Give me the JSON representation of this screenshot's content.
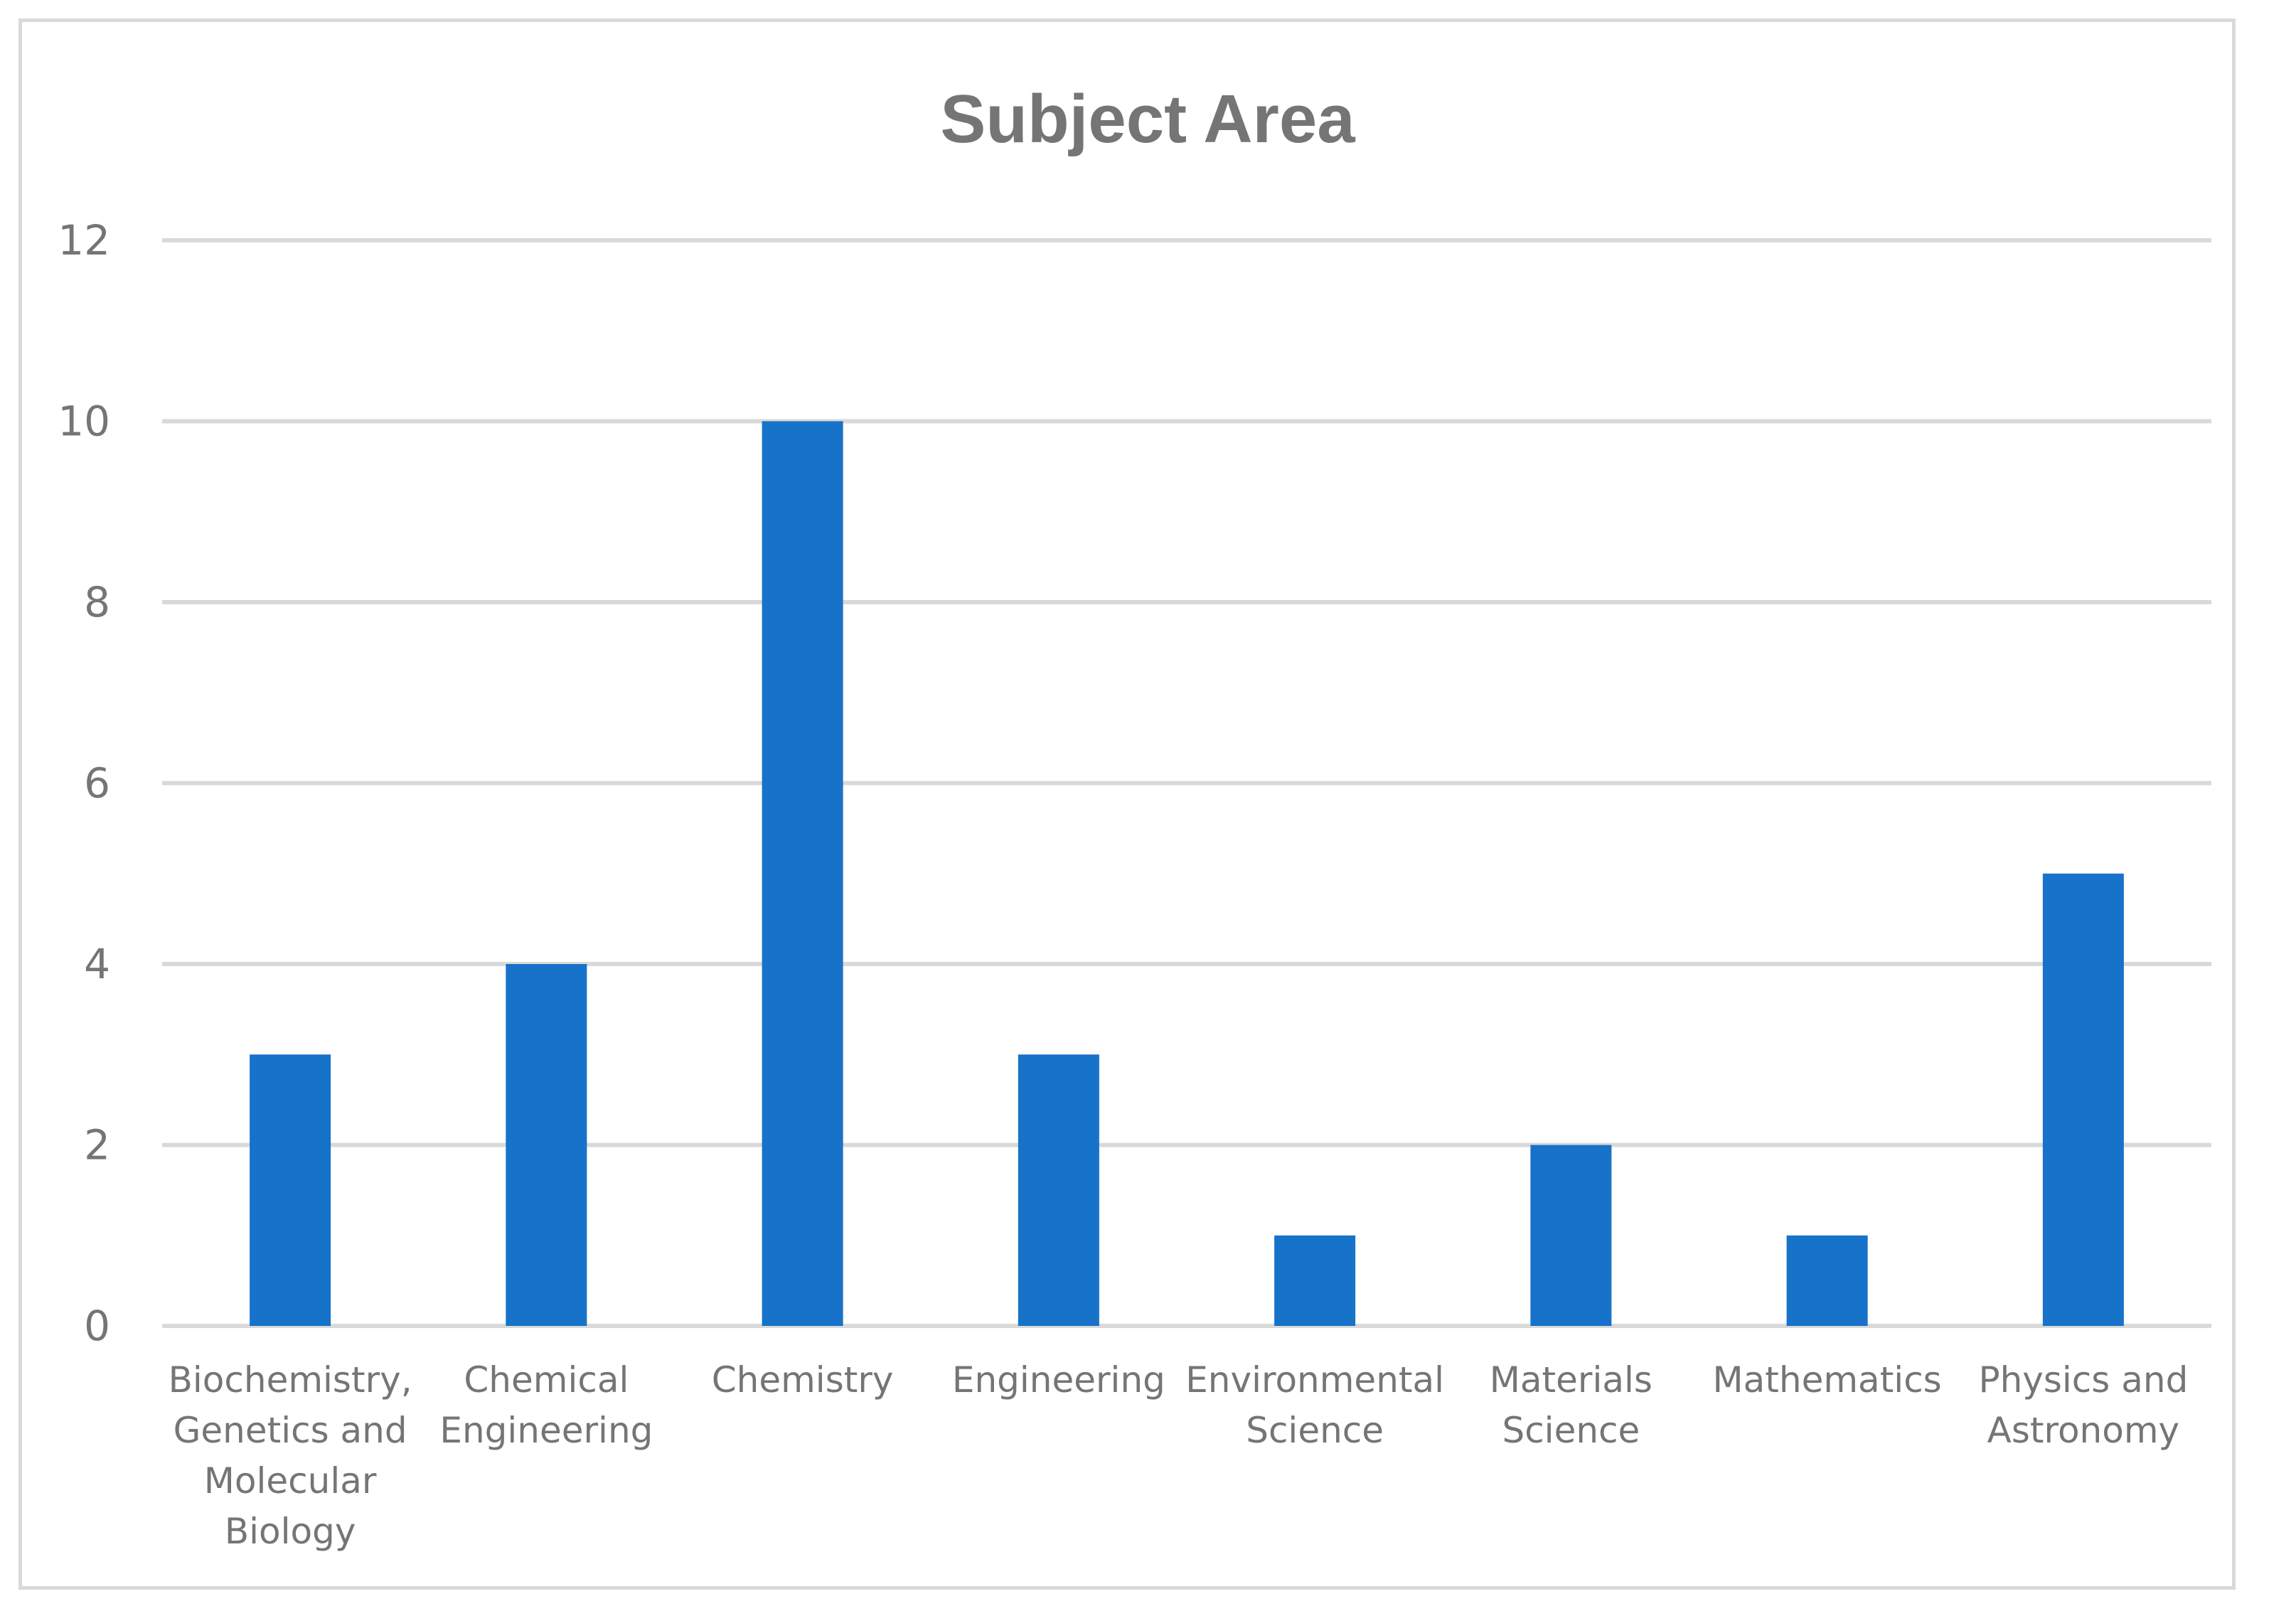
{
  "chart_data": {
    "type": "bar",
    "title": "Subject Area",
    "xlabel": "",
    "ylabel": "",
    "categories": [
      "Biochemistry, Genetics and Molecular Biology",
      "Chemical Engineering",
      "Chemistry",
      "Engineering",
      "Environmental Science",
      "Materials Science",
      "Mathematics",
      "Physics and Astronomy"
    ],
    "category_lines": [
      [
        "Biochemistry,",
        "Genetics and",
        "Molecular",
        "Biology"
      ],
      [
        "Chemical",
        "Engineering"
      ],
      [
        "Chemistry"
      ],
      [
        "Engineering"
      ],
      [
        "Environmental",
        "Science"
      ],
      [
        "Materials",
        "Science"
      ],
      [
        "Mathematics"
      ],
      [
        "Physics and",
        "Astronomy"
      ]
    ],
    "values": [
      3,
      4,
      10,
      3,
      1,
      2,
      1,
      5
    ],
    "ylim": [
      0,
      12
    ],
    "yticks": [
      "0",
      "2",
      "4",
      "6",
      "8",
      "10",
      "12"
    ],
    "grid": true,
    "legend": "none",
    "bar_color": "#1772C9",
    "grid_color": "#d9d9d9",
    "text_color": "#757575"
  }
}
